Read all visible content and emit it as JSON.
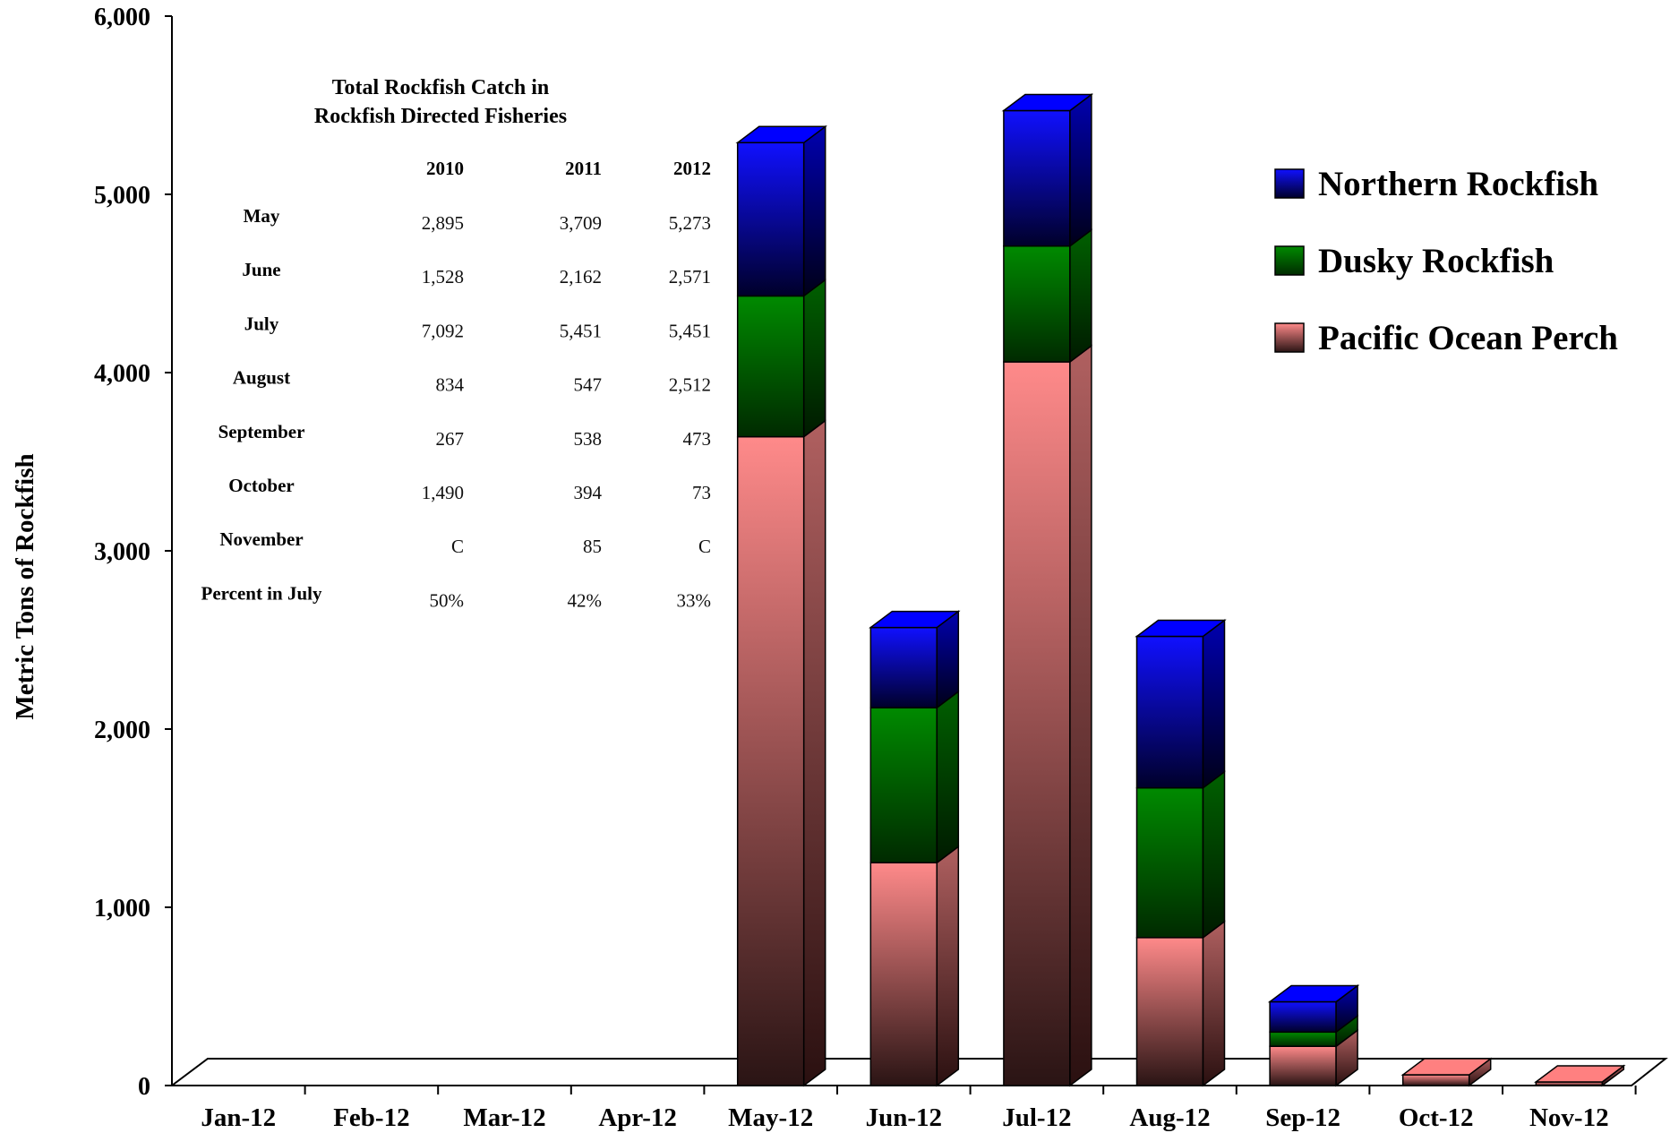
{
  "chart_data": {
    "type": "bar",
    "stacked": true,
    "three_d": true,
    "categories": [
      "Jan-12",
      "Feb-12",
      "Mar-12",
      "Apr-12",
      "May-12",
      "Jun-12",
      "Jul-12",
      "Aug-12",
      "Sep-12",
      "Oct-12",
      "Nov-12"
    ],
    "series": [
      {
        "name": "Pacific Ocean Perch",
        "color": "#ff8080",
        "values": [
          0,
          0,
          0,
          0,
          3640,
          1250,
          4060,
          830,
          220,
          60,
          20
        ]
      },
      {
        "name": "Dusky Rockfish",
        "color": "#008000",
        "values": [
          0,
          0,
          0,
          0,
          790,
          870,
          650,
          840,
          80,
          0,
          0
        ]
      },
      {
        "name": "Northern Rockfish",
        "color": "#0000ff",
        "values": [
          0,
          0,
          0,
          0,
          860,
          450,
          760,
          850,
          170,
          0,
          0
        ]
      }
    ],
    "ylabel": "Metric Tons of Rockfish",
    "xlabel": "",
    "ylim": [
      0,
      6000
    ],
    "yticks": [
      "0",
      "1,000",
      "2,000",
      "3,000",
      "4,000",
      "5,000",
      "6,000"
    ],
    "ytick_values": [
      0,
      1000,
      2000,
      3000,
      4000,
      5000,
      6000
    ],
    "legend_position": "top-right",
    "grid": false
  },
  "inset_table": {
    "title_line1": "Total Rockfish Catch in",
    "title_line2": "Rockfish Directed Fisheries",
    "columns": [
      "2010",
      "2011",
      "2012"
    ],
    "rows": [
      {
        "label": "May",
        "values": [
          "2,895",
          "3,709",
          "5,273"
        ]
      },
      {
        "label": "June",
        "values": [
          "1,528",
          "2,162",
          "2,571"
        ]
      },
      {
        "label": "July",
        "values": [
          "7,092",
          "5,451",
          "5,451"
        ]
      },
      {
        "label": "August",
        "values": [
          "834",
          "547",
          "2,512"
        ]
      },
      {
        "label": "September",
        "values": [
          "267",
          "538",
          "473"
        ]
      },
      {
        "label": "October",
        "values": [
          "1,490",
          "394",
          "73"
        ]
      },
      {
        "label": "November",
        "values": [
          "C",
          "85",
          "C"
        ]
      },
      {
        "label": "Percent in July",
        "values": [
          "50%",
          "42%",
          "33%"
        ]
      }
    ]
  },
  "legend": [
    {
      "label": "Northern Rockfish",
      "color": "#0000ff"
    },
    {
      "label": "Dusky Rockfish",
      "color": "#008000"
    },
    {
      "label": "Pacific Ocean Perch",
      "color": "#ff8080"
    }
  ]
}
